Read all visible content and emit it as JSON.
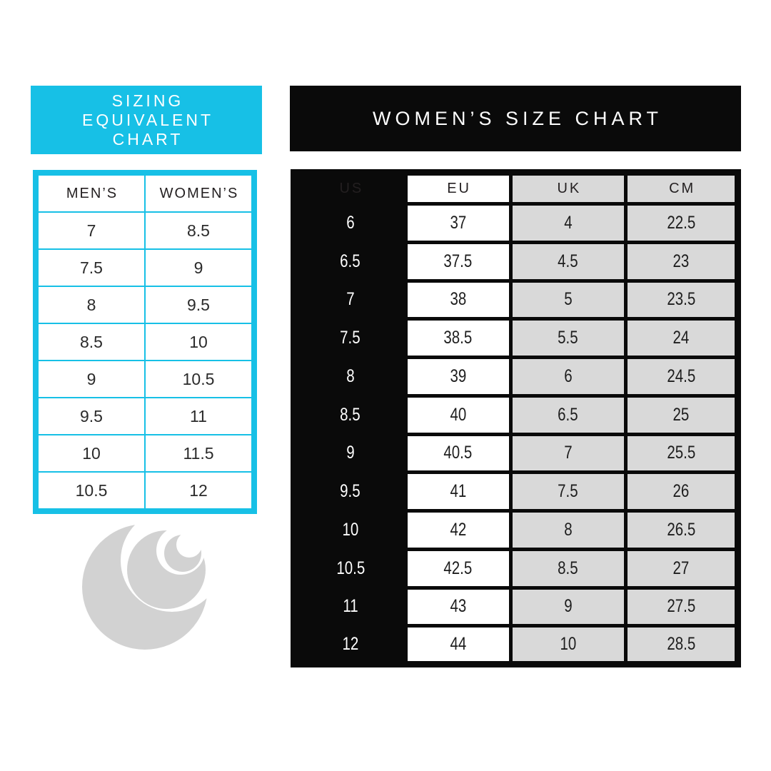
{
  "left_panel": {
    "title_lines": [
      "SIZING",
      "EQUIVALENT",
      "CHART"
    ],
    "table": {
      "headers": [
        "MEN’S",
        "WOMEN’S"
      ],
      "rows": [
        [
          "7",
          "8.5"
        ],
        [
          "7.5",
          "9"
        ],
        [
          "8",
          "9.5"
        ],
        [
          "8.5",
          "10"
        ],
        [
          "9",
          "10.5"
        ],
        [
          "9.5",
          "11"
        ],
        [
          "10",
          "11.5"
        ],
        [
          "10.5",
          "12"
        ]
      ]
    }
  },
  "right_panel": {
    "title": "WOMEN’S SIZE CHART",
    "table": {
      "headers": [
        "US",
        "EU",
        "UK",
        "CM"
      ],
      "rows": [
        [
          "6",
          "37",
          "4",
          "22.5"
        ],
        [
          "6.5",
          "37.5",
          "4.5",
          "23"
        ],
        [
          "7",
          "38",
          "5",
          "23.5"
        ],
        [
          "7.5",
          "38.5",
          "5.5",
          "24"
        ],
        [
          "8",
          "39",
          "6",
          "24.5"
        ],
        [
          "8.5",
          "40",
          "6.5",
          "25"
        ],
        [
          "9",
          "40.5",
          "7",
          "25.5"
        ],
        [
          "9.5",
          "41",
          "7.5",
          "26"
        ],
        [
          "10",
          "42",
          "8",
          "26.5"
        ],
        [
          "10.5",
          "42.5",
          "8.5",
          "27"
        ],
        [
          "11",
          "43",
          "9",
          "27.5"
        ],
        [
          "12",
          "44",
          "10",
          "28.5"
        ]
      ]
    }
  },
  "logo": {
    "icon": "triple-crescent-moon-logo",
    "color": "#d2d2d2"
  },
  "colors": {
    "accent_cyan": "#17c0e6",
    "header_black": "#0a0a0a",
    "cell_gray": "#d9d9d9",
    "text_dark": "#231f20"
  }
}
